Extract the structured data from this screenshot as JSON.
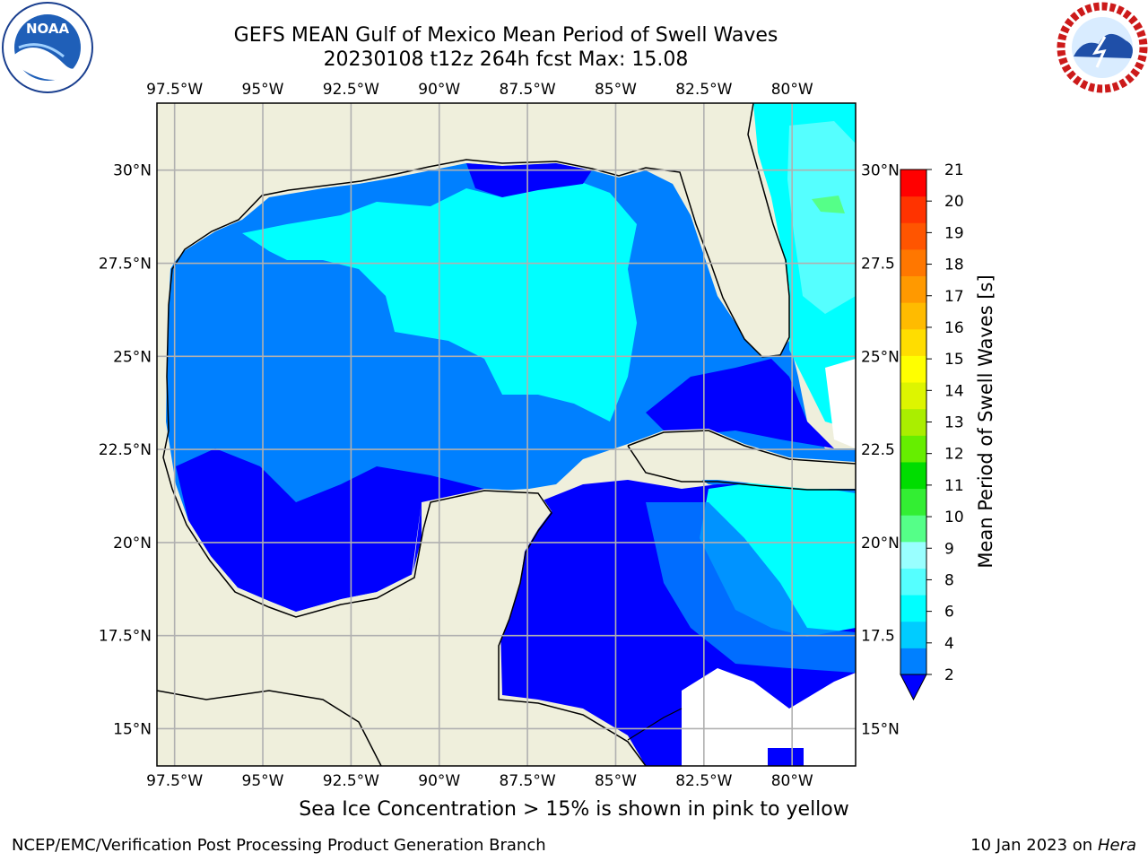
{
  "title": {
    "line1": "GEFS MEAN Gulf of Mexico Mean Period of Swell Waves",
    "line2": "20230108 t12z 264h fcst   Max: 15.08"
  },
  "logos": {
    "left": {
      "icon": "noaa-logo",
      "text": "NOAA",
      "ring_text": "NATIONAL OCEANIC AND ATMOSPHERIC ADMINISTRATION · U.S. DEPARTMENT OF COMMERCE"
    },
    "right": {
      "icon": "nws-logo",
      "ring_text": "NATIONAL WEATHER SERVICE"
    }
  },
  "map": {
    "lon_ticks": [
      "97.5°W",
      "95°W",
      "92.5°W",
      "90°W",
      "87.5°W",
      "85°W",
      "82.5°W",
      "80°W"
    ],
    "lat_ticks": [
      "30°N",
      "27.5°N",
      "25°N",
      "22.5°N",
      "20°N",
      "17.5°N",
      "15°N"
    ],
    "lat_ticks_right": [
      "30°N",
      "27.5",
      "25°N",
      "22.5",
      "20°N",
      "17.5",
      "15°N"
    ],
    "extent": {
      "lon_min": -98.0,
      "lon_max": -78.2,
      "lat_min": 14.0,
      "lat_max": 31.8
    },
    "colors": {
      "land": "#efefdc",
      "grid": "#b0b0b0",
      "coast": "#000000"
    }
  },
  "colorbar": {
    "label": "Mean Period of Swell Waves [s]",
    "ticks": [
      "2",
      "4",
      "6",
      "8",
      "9",
      "10",
      "11",
      "12",
      "13",
      "14",
      "15",
      "16",
      "17",
      "18",
      "19",
      "20",
      "21"
    ],
    "colors": [
      "#0080ff",
      "#00ccff",
      "#00ffff",
      "#55ffff",
      "#99ffff",
      "#55ff88",
      "#33ee33",
      "#00dd00",
      "#66ee00",
      "#aaee00",
      "#ddf500",
      "#ffff00",
      "#ffdd00",
      "#ffbb00",
      "#ff9900",
      "#ff7700",
      "#ff5500",
      "#ff3300",
      "#ff0000"
    ],
    "extend_color": "#0000ff"
  },
  "note": "Sea Ice Concentration > 15% is shown in pink to yellow",
  "footer": {
    "left": "NCEP/EMC/Verification Post Processing Product Generation Branch",
    "right_date": "10 Jan 2023 on ",
    "right_host": "Hera"
  }
}
